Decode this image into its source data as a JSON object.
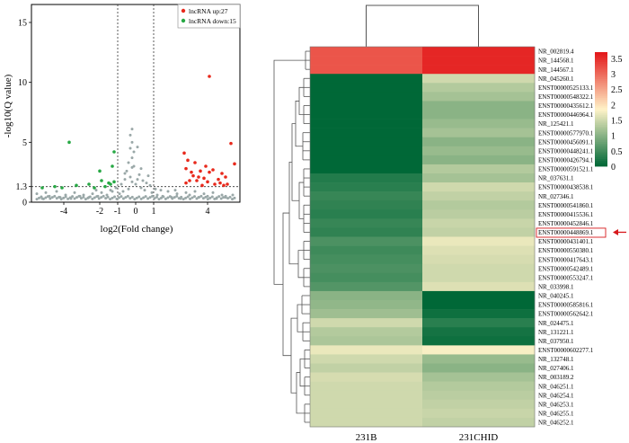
{
  "volcano": {
    "type": "scatter",
    "xlabel": "log2(Fold change)",
    "ylabel": "-log10(Q value)",
    "xlim": [
      -5.8,
      5.8
    ],
    "ylim": [
      0,
      16.5
    ],
    "xticks": [
      {
        "v": -4,
        "label": "-4"
      },
      {
        "v": -2,
        "label": "-2"
      },
      {
        "v": -1,
        "label": "-1"
      },
      {
        "v": 0,
        "label": "0"
      },
      {
        "v": 1,
        "label": "1"
      },
      {
        "v": 4,
        "label": "4"
      }
    ],
    "yticks": [
      {
        "v": 0,
        "label": "0"
      },
      {
        "v": 1.3,
        "label": "1.3"
      },
      {
        "v": 5,
        "label": "5"
      },
      {
        "v": 10,
        "label": "10"
      },
      {
        "v": 15,
        "label": "15"
      }
    ],
    "threshold_q": 1.3,
    "threshold_fc": [
      -1,
      1
    ],
    "legend": [
      {
        "label": "lncRNA up:27",
        "color": "#e8291c"
      },
      {
        "label": "lncRNA down:15",
        "color": "#27a844"
      }
    ],
    "up_points": [
      [
        4.1,
        10.5
      ],
      [
        5.3,
        4.9
      ],
      [
        5.5,
        3.2
      ],
      [
        2.7,
        4.1
      ],
      [
        2.9,
        3.5
      ],
      [
        3.1,
        2.5
      ],
      [
        3.2,
        2.2
      ],
      [
        3.3,
        3.3
      ],
      [
        3.6,
        2.6
      ],
      [
        3.8,
        2.0
      ],
      [
        4.3,
        2.7
      ],
      [
        4.6,
        1.9
      ],
      [
        4.8,
        2.4
      ],
      [
        5.0,
        2.1
      ],
      [
        2.8,
        2.8
      ],
      [
        3.0,
        1.8
      ],
      [
        3.4,
        1.8
      ],
      [
        3.9,
        3.0
      ],
      [
        4.1,
        2.5
      ],
      [
        4.4,
        1.5
      ],
      [
        4.7,
        1.6
      ],
      [
        5.1,
        1.5
      ],
      [
        2.8,
        1.6
      ],
      [
        3.5,
        2.1
      ],
      [
        4.0,
        1.7
      ],
      [
        4.9,
        1.4
      ],
      [
        3.7,
        1.4
      ]
    ],
    "down_points": [
      [
        -3.7,
        5.0
      ],
      [
        -1.2,
        4.2
      ],
      [
        -1.3,
        3.0
      ],
      [
        -2.0,
        2.6
      ],
      [
        -1.9,
        1.8
      ],
      [
        -2.6,
        1.5
      ],
      [
        -3.3,
        1.4
      ],
      [
        -1.5,
        1.6
      ],
      [
        -1.7,
        1.3
      ],
      [
        -2.3,
        1.2
      ],
      [
        -1.2,
        1.7
      ],
      [
        -1.4,
        1.5
      ],
      [
        -4.5,
        1.3
      ],
      [
        -4.1,
        1.2
      ],
      [
        -5.2,
        1.2
      ]
    ],
    "ns_points": [
      [
        -0.2,
        6.1
      ],
      [
        -0.3,
        5.6
      ],
      [
        -0.2,
        5.0
      ],
      [
        -0.3,
        4.5
      ],
      [
        -0.1,
        4.2
      ],
      [
        -0.2,
        3.7
      ],
      [
        -0.4,
        3.3
      ],
      [
        -0.2,
        2.9
      ],
      [
        0.1,
        4.6
      ],
      [
        -0.1,
        3.0
      ],
      [
        -0.5,
        2.6
      ],
      [
        0.2,
        2.3
      ],
      [
        -0.3,
        2.1
      ],
      [
        0.1,
        1.9
      ],
      [
        -0.2,
        1.7
      ],
      [
        0.0,
        1.5
      ],
      [
        -0.6,
        1.9
      ],
      [
        0.4,
        1.8
      ],
      [
        0.6,
        1.6
      ],
      [
        -0.8,
        1.5
      ],
      [
        0.8,
        1.4
      ],
      [
        0.3,
        1.2
      ],
      [
        -0.4,
        1.1
      ],
      [
        0.5,
        1.0
      ],
      [
        -0.7,
        0.9
      ],
      [
        0.9,
        0.8
      ],
      [
        -0.9,
        0.7
      ],
      [
        1.2,
        0.6
      ],
      [
        -1.3,
        0.9
      ],
      [
        1.5,
        0.5
      ],
      [
        -1.6,
        0.6
      ],
      [
        2.0,
        0.4
      ],
      [
        -2.1,
        0.5
      ],
      [
        2.5,
        0.3
      ],
      [
        -2.6,
        0.4
      ],
      [
        3.0,
        0.6
      ],
      [
        -3.1,
        0.5
      ],
      [
        3.5,
        0.4
      ],
      [
        -3.6,
        0.3
      ],
      [
        4.0,
        0.5
      ],
      [
        -4.2,
        0.4
      ],
      [
        4.5,
        0.3
      ],
      [
        -4.8,
        0.5
      ],
      [
        5.0,
        0.4
      ],
      [
        -5.2,
        0.3
      ],
      [
        5.4,
        0.6
      ],
      [
        -5.5,
        0.7
      ],
      [
        1.1,
        1.1
      ],
      [
        -1.1,
        1.2
      ],
      [
        1.8,
        0.9
      ],
      [
        -1.9,
        0.8
      ],
      [
        2.3,
        0.7
      ],
      [
        -2.4,
        0.7
      ],
      [
        2.8,
        0.8
      ],
      [
        -2.9,
        0.6
      ],
      [
        3.3,
        0.9
      ],
      [
        -3.4,
        0.8
      ],
      [
        3.8,
        0.7
      ],
      [
        -3.9,
        0.6
      ],
      [
        4.3,
        0.8
      ],
      [
        -4.4,
        0.9
      ],
      [
        4.8,
        0.6
      ],
      [
        -5.0,
        0.8
      ],
      [
        0.7,
        2.2
      ],
      [
        -0.6,
        2.4
      ],
      [
        0.3,
        2.8
      ],
      [
        1.4,
        1.0
      ],
      [
        -1.4,
        1.0
      ],
      [
        2.2,
        1.0
      ],
      [
        -2.2,
        1.0
      ]
    ]
  },
  "heatmap": {
    "type": "heatmap",
    "columns": [
      "231B",
      "231CHID"
    ],
    "rows": [
      "NR_002819.4",
      "NR_144568.1",
      "NR_144567.1",
      "NR_045260.1",
      "ENST00000525133.1",
      "ENST00000548322.1",
      "ENST00000435612.1",
      "ENST00000446964.1",
      "NR_125421.1",
      "ENST00000577970.1",
      "ENST00000456091.1",
      "ENST00000448241.1",
      "ENST00000426794.1",
      "ENST00000591521.1",
      "NR_037631.1",
      "ENST00000438538.1",
      "NR_027346.1",
      "ENST00000541860.1",
      "ENST00000415536.1",
      "ENST00000452846.1",
      "ENST00000448869.1",
      "ENST00000431401.1",
      "ENST00000550380.1",
      "ENST00000417643.1",
      "ENST00000542489.1",
      "ENST00000553247.1",
      "NR_033998.1",
      "NR_040245.1",
      "ENST00000585816.1",
      "ENST00000562642.1",
      "NR_024475.1",
      "NR_131221.1",
      "NR_037950.1",
      "ENST00000602277.1",
      "NR_132748.1",
      "NR_027406.1",
      "NR_003189.2",
      "NR_046251.1",
      "NR_046254.1",
      "NR_046253.1",
      "NR_046255.1",
      "NR_046252.1"
    ],
    "values": [
      [
        3.2,
        3.6
      ],
      [
        3.2,
        3.6
      ],
      [
        3.2,
        3.6
      ],
      [
        0.0,
        1.5
      ],
      [
        0.0,
        1.3
      ],
      [
        0.0,
        1.2
      ],
      [
        0.0,
        1.0
      ],
      [
        0.0,
        1.0
      ],
      [
        0.0,
        1.1
      ],
      [
        0.0,
        1.2
      ],
      [
        0.0,
        1.0
      ],
      [
        0.0,
        1.1
      ],
      [
        0.0,
        1.0
      ],
      [
        0.0,
        1.3
      ],
      [
        0.25,
        1.2
      ],
      [
        0.3,
        1.5
      ],
      [
        0.4,
        1.4
      ],
      [
        0.35,
        1.3
      ],
      [
        0.3,
        1.35
      ],
      [
        0.4,
        1.45
      ],
      [
        0.35,
        1.4
      ],
      [
        0.55,
        1.7
      ],
      [
        0.45,
        1.6
      ],
      [
        0.5,
        1.55
      ],
      [
        0.55,
        1.5
      ],
      [
        0.5,
        1.5
      ],
      [
        0.6,
        1.6
      ],
      [
        1.0,
        0.0
      ],
      [
        1.05,
        0.0
      ],
      [
        1.15,
        0.1
      ],
      [
        1.5,
        0.3
      ],
      [
        1.3,
        0.15
      ],
      [
        1.25,
        0.1
      ],
      [
        1.7,
        1.8
      ],
      [
        1.5,
        1.1
      ],
      [
        1.4,
        1.0
      ],
      [
        1.55,
        1.2
      ],
      [
        1.5,
        1.3
      ],
      [
        1.5,
        1.35
      ],
      [
        1.5,
        1.4
      ],
      [
        1.5,
        1.45
      ],
      [
        1.5,
        1.4
      ]
    ],
    "colorbar_ticks": [
      "0",
      "0.5",
      "1",
      "1.5",
      "2",
      "2.5",
      "3",
      "3.5"
    ],
    "vmin": 0,
    "vmax": 3.7,
    "highlight_row": "ENST00000448869.1",
    "colors": {
      "low": "#006837",
      "mid": "#fff3c8",
      "high": "#e31a1c",
      "arrow": "#d7191c"
    }
  }
}
